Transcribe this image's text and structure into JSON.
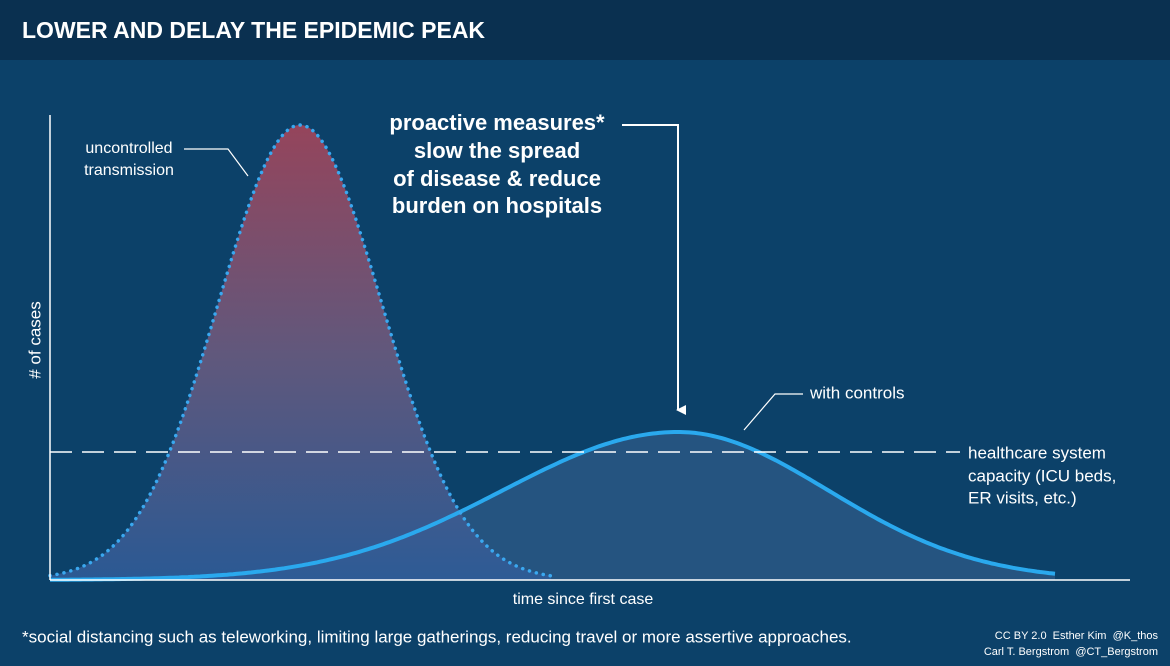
{
  "header": {
    "title": "LOWER AND DELAY THE EPIDEMIC PEAK"
  },
  "axes": {
    "y_label": "# of cases",
    "x_label": "time since first case"
  },
  "annotations": {
    "uncontrolled": [
      "uncontrolled",
      "transmission"
    ],
    "measures": [
      "proactive measures*",
      "slow the spread",
      "of disease & reduce",
      "burden on hospitals"
    ],
    "controls": "with controls",
    "capacity": [
      "healthcare system",
      "capacity (ICU beds,",
      "ER visits, etc.)"
    ]
  },
  "footer": {
    "note": "*social distancing such as teleworking, limiting large gatherings, reducing travel or more assertive approaches.",
    "credits": [
      "CC BY 2.0  Esther Kim  @K_thos",
      "Carl T. Bergstrom  @CT_Bergstrom"
    ]
  }
}
